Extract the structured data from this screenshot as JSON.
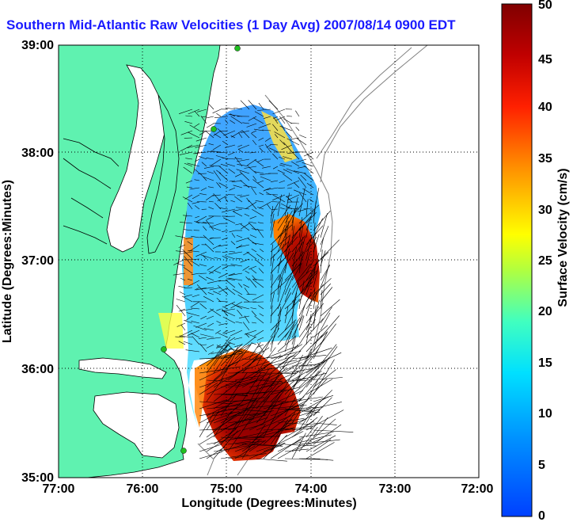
{
  "title": "Southern Mid-Atlantic Raw Velocities (1 Day Avg) 2007/08/14 0900 EDT",
  "axes": {
    "xlabel": "Longitude (Degrees:Minutes)",
    "ylabel": "Latitude (Degrees:Minutes)",
    "x_ticks": [
      "77:00",
      "76:00",
      "75:00",
      "74:00",
      "73:00",
      "72:00"
    ],
    "y_ticks": [
      "39:00",
      "38:00",
      "37:00",
      "36:00",
      "35:00"
    ]
  },
  "colorbar": {
    "label": "Surface Velocity (cm/s)",
    "ticks": [
      "50",
      "45",
      "40",
      "35",
      "30",
      "25",
      "20",
      "15",
      "10",
      "5",
      "0"
    ],
    "min": 0,
    "max": 50,
    "colormap": [
      "#0000ff",
      "#00c0ff",
      "#00ffff",
      "#80ff80",
      "#ffff00",
      "#ff8000",
      "#ff0000",
      "#800000"
    ]
  },
  "colors": {
    "land": "#5ff2b0",
    "water": "#ffffff",
    "coastline": "#000000",
    "bathymetry": "#808080",
    "station": "#20c020"
  }
}
